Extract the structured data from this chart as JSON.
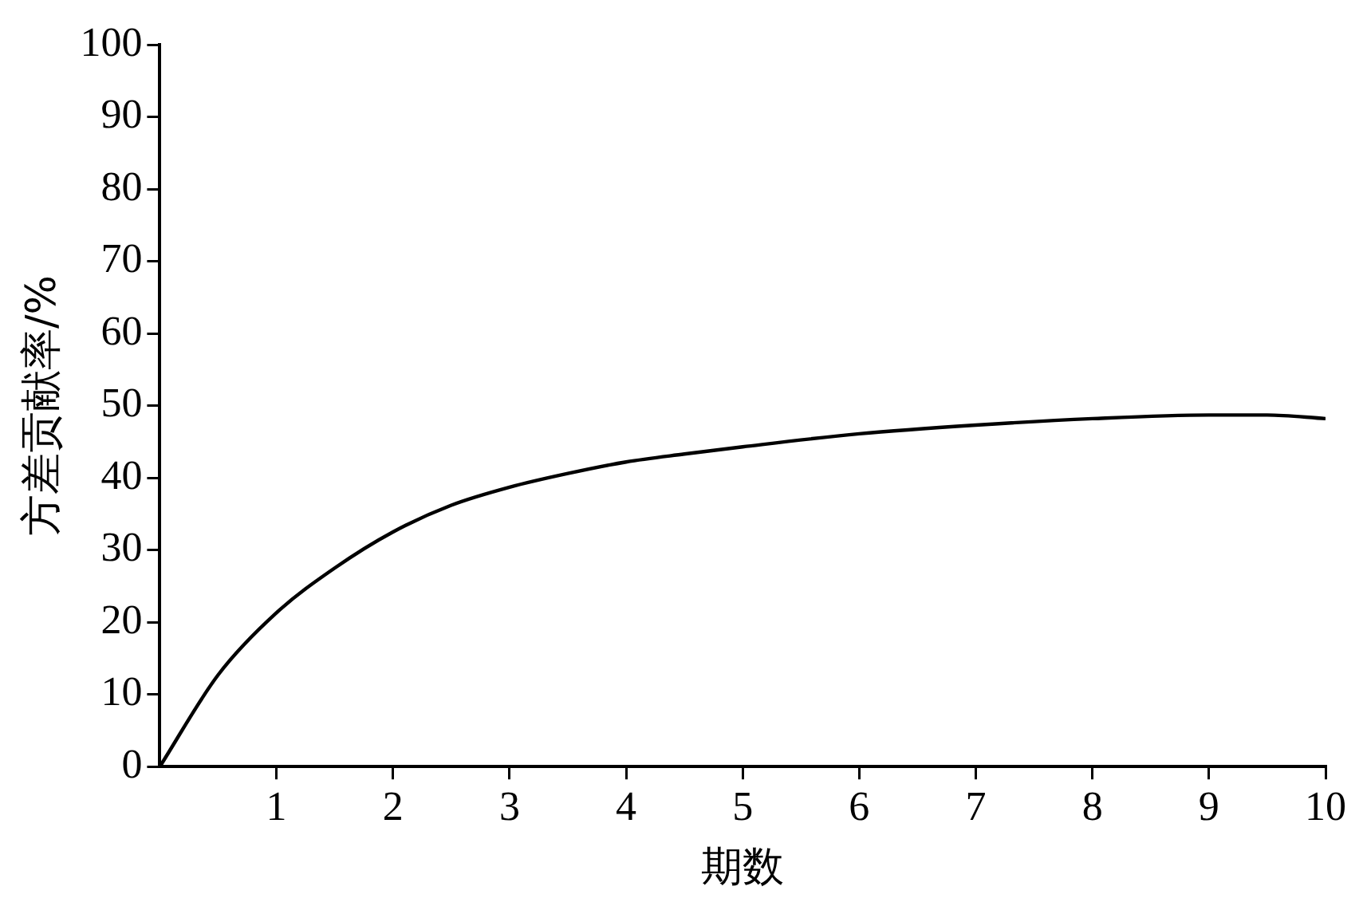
{
  "chart_data": {
    "type": "line",
    "xlabel": "期数",
    "ylabel": "方差贡献率/%",
    "x": [
      0,
      0.5,
      1,
      1.5,
      2,
      2.5,
      3,
      3.5,
      4,
      4.5,
      5,
      6,
      7,
      8,
      9,
      9.5,
      10
    ],
    "series": [
      {
        "color": "#000000",
        "values": [
          0,
          12.7,
          21.3,
          27.5,
          32.5,
          36.2,
          38.7,
          40.6,
          42.2,
          43.3,
          44.3,
          46.1,
          47.3,
          48.2,
          48.7,
          48.7,
          48.2
        ]
      }
    ],
    "xlim": [
      0,
      10
    ],
    "xticks": [
      1,
      2,
      3,
      4,
      5,
      6,
      7,
      8,
      9,
      10
    ],
    "ylim": [
      0,
      100
    ],
    "yticks": [
      0,
      10,
      20,
      30,
      40,
      50,
      60,
      70,
      80,
      90,
      100
    ],
    "grid": false,
    "legend": false,
    "marker": "none",
    "line_style": "solid"
  }
}
